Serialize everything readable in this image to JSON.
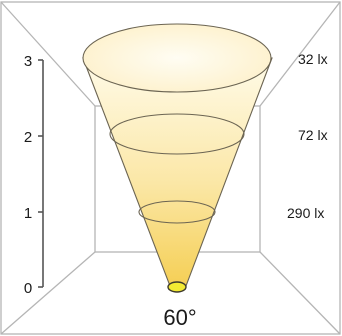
{
  "axis": {
    "ticks": [
      "0",
      "1",
      "2",
      "3"
    ]
  },
  "lux_levels": [
    "32 lx",
    "72 lx",
    "290 lx"
  ],
  "beam_angle": "60°",
  "colors": {
    "frame": "#b5b5b5",
    "axis": "#555555",
    "cone_top": "#fffbe9",
    "cone_bottom": "#f5cf55",
    "cone_outline": "#6b6452",
    "source_fill": "#f3ea33"
  }
}
